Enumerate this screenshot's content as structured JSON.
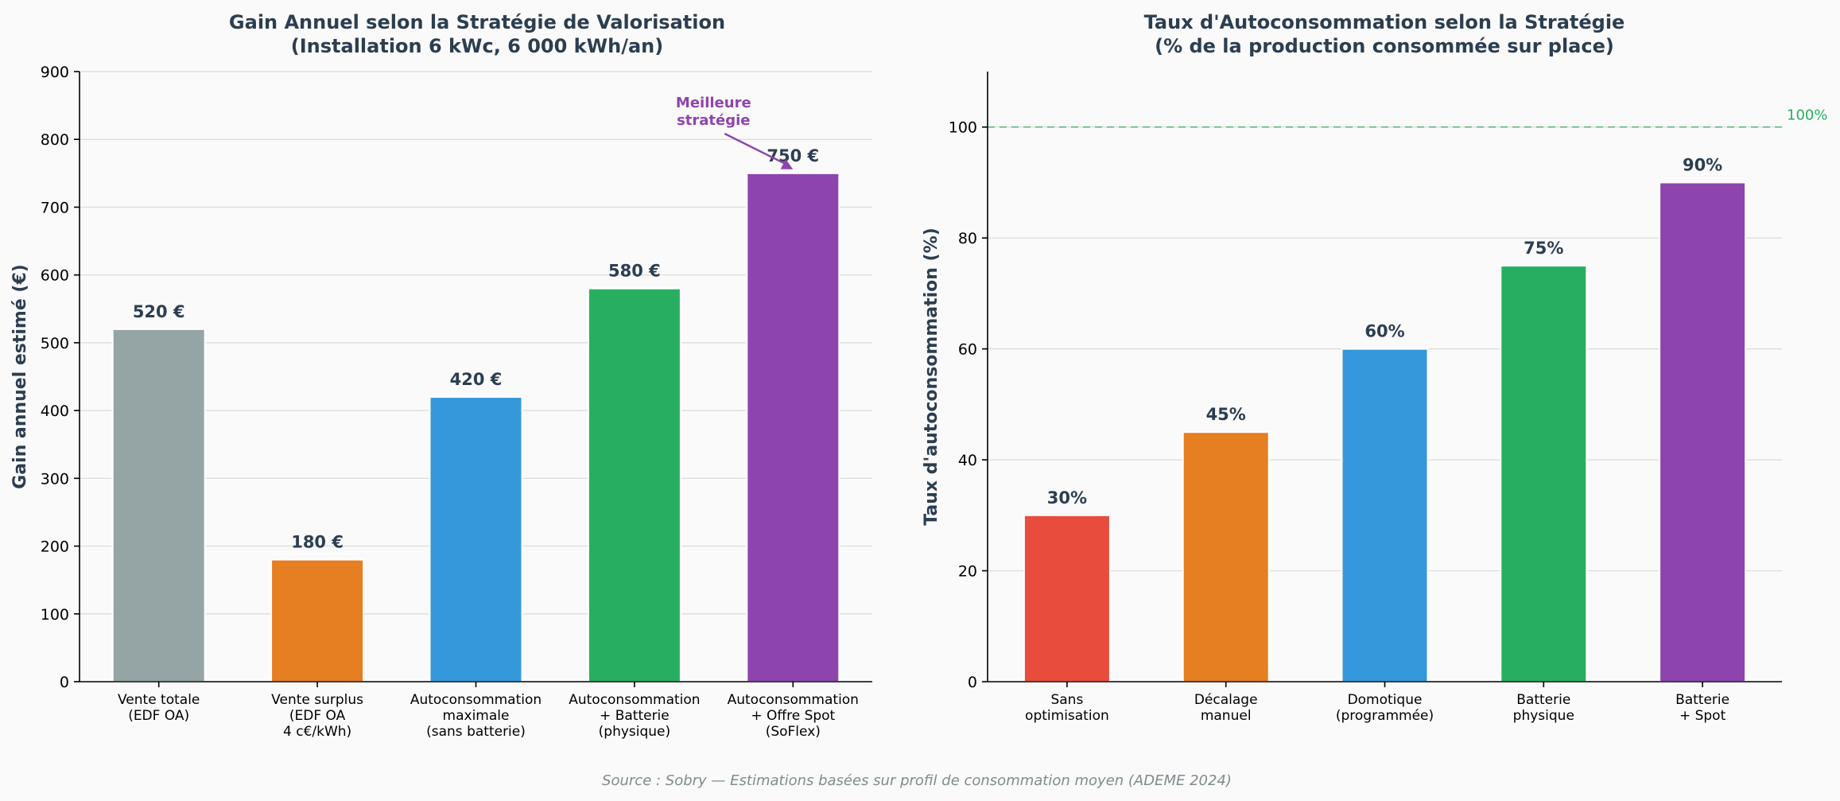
{
  "chart_data": [
    {
      "type": "bar",
      "title": [
        "Gain Annuel selon la Stratégie de Valorisation",
        "(Installation 6 kWc, 6 000 kWh/an)"
      ],
      "xlabel": "",
      "ylabel": "Gain annuel estimé (€)",
      "ylim": [
        0,
        900
      ],
      "yticks": [
        0,
        100,
        200,
        300,
        400,
        500,
        600,
        700,
        800,
        900
      ],
      "categories": [
        [
          "Vente totale",
          "(EDF OA)"
        ],
        [
          "Vente surplus",
          "(EDF OA",
          "4 c€/kWh)"
        ],
        [
          "Autoconsommation",
          "maximale",
          "(sans batterie)"
        ],
        [
          "Autoconsommation",
          "+ Batterie",
          "(physique)"
        ],
        [
          "Autoconsommation",
          "+ Offre Spot",
          "(SoFlex)"
        ]
      ],
      "values": [
        520,
        180,
        420,
        580,
        750
      ],
      "value_labels": [
        "520 €",
        "180 €",
        "420 €",
        "580 €",
        "750 €"
      ],
      "colors": [
        "#95a5a6",
        "#e67e22",
        "#3498db",
        "#27ae60",
        "#8e44ad"
      ],
      "annotation": {
        "text": [
          "Meilleure",
          "stratégie"
        ],
        "target_index": 4,
        "color": "#8e44ad"
      },
      "grid": "y"
    },
    {
      "type": "bar",
      "title": [
        "Taux d'Autoconsommation selon la Stratégie",
        "(% de la production consommée sur place)"
      ],
      "xlabel": "",
      "ylabel": "Taux d'autoconsommation (%)",
      "ylim": [
        0,
        110
      ],
      "yticks": [
        0,
        20,
        40,
        60,
        80,
        100
      ],
      "categories": [
        [
          "Sans",
          "optimisation"
        ],
        [
          "Décalage",
          "manuel"
        ],
        [
          "Domotique",
          "(programmée)"
        ],
        [
          "Batterie",
          "physique"
        ],
        [
          "Batterie",
          "+ Spot"
        ]
      ],
      "values": [
        30,
        45,
        60,
        75,
        90
      ],
      "value_labels": [
        "30%",
        "45%",
        "60%",
        "75%",
        "90%"
      ],
      "colors": [
        "#e74c3c",
        "#e67e22",
        "#3498db",
        "#27ae60",
        "#8e44ad"
      ],
      "reference_line": {
        "value": 100,
        "label": "100%",
        "color": "#27ae60"
      },
      "grid": "y"
    }
  ],
  "source": "Source : Sobry — Estimations basées sur profil de consommation moyen (ADEME 2024)"
}
